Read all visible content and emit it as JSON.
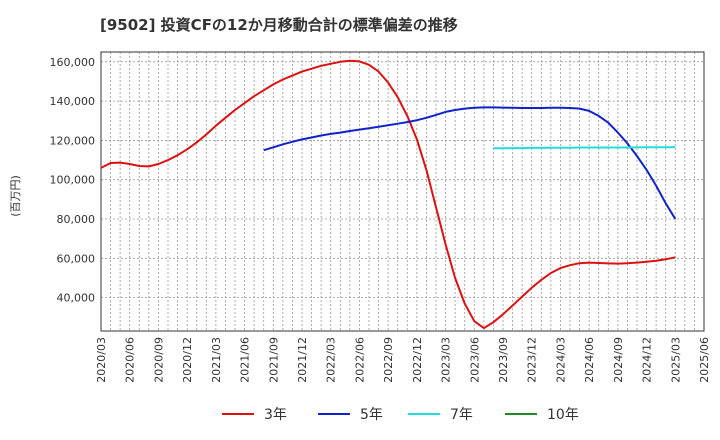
{
  "chart_data": {
    "type": "line",
    "title": "[9502]  投資CFの12か月移動合計の標準偏差の推移",
    "ylabel": "(百万円)",
    "ylim": [
      23000,
      165000
    ],
    "xlim": [
      "2020-03",
      "2025-06"
    ],
    "y_ticks": [
      40000,
      60000,
      80000,
      100000,
      120000,
      140000,
      160000
    ],
    "y_tick_labels": [
      "40,000",
      "60,000",
      "80,000",
      "100,000",
      "120,000",
      "140,000",
      "160,000"
    ],
    "x_tick_labels": [
      "2020/03",
      "2020/06",
      "2020/09",
      "2020/12",
      "2021/03",
      "2021/06",
      "2021/09",
      "2021/12",
      "2022/03",
      "2022/06",
      "2022/09",
      "2022/12",
      "2023/03",
      "2023/06",
      "2023/09",
      "2023/12",
      "2024/03",
      "2024/06",
      "2024/09",
      "2024/12",
      "2025/03",
      "2025/06"
    ],
    "grid": true,
    "legend_position": "bottom",
    "series": [
      {
        "name": "3年",
        "color": "#dd1111",
        "x": [
          "2020-03",
          "2020-04",
          "2020-05",
          "2020-06",
          "2020-07",
          "2020-08",
          "2020-09",
          "2020-10",
          "2020-11",
          "2020-12",
          "2021-01",
          "2021-02",
          "2021-03",
          "2021-04",
          "2021-05",
          "2021-06",
          "2021-07",
          "2021-08",
          "2021-09",
          "2021-10",
          "2021-11",
          "2021-12",
          "2022-01",
          "2022-02",
          "2022-03",
          "2022-04",
          "2022-05",
          "2022-06",
          "2022-07",
          "2022-08",
          "2022-09",
          "2022-10",
          "2022-11",
          "2022-12",
          "2023-01",
          "2023-02",
          "2023-03",
          "2023-04",
          "2023-05",
          "2023-06",
          "2023-07",
          "2023-08",
          "2023-09",
          "2023-10",
          "2023-11",
          "2023-12",
          "2024-01",
          "2024-02",
          "2024-03",
          "2024-04",
          "2024-05",
          "2024-06",
          "2024-07",
          "2024-08",
          "2024-09",
          "2024-10",
          "2024-11",
          "2024-12",
          "2025-01",
          "2025-02",
          "2025-03"
        ],
        "values": [
          106000,
          108500,
          108700,
          108000,
          107000,
          106800,
          108000,
          110000,
          112500,
          115500,
          119000,
          123000,
          127500,
          131500,
          135500,
          139000,
          142500,
          145500,
          148500,
          151000,
          153000,
          155000,
          156500,
          158000,
          159000,
          160000,
          160500,
          160200,
          158500,
          155000,
          149500,
          142000,
          132500,
          120500,
          105000,
          86000,
          67000,
          50000,
          37000,
          28000,
          24500,
          27500,
          31500,
          36000,
          40500,
          45000,
          49000,
          52500,
          55000,
          56500,
          57500,
          57800,
          57600,
          57400,
          57300,
          57500,
          57800,
          58200,
          58800,
          59500,
          60500
        ]
      },
      {
        "name": "5年",
        "color": "#1122cc",
        "x": [
          "2021-08",
          "2021-09",
          "2021-10",
          "2021-11",
          "2021-12",
          "2022-01",
          "2022-02",
          "2022-03",
          "2022-04",
          "2022-05",
          "2022-06",
          "2022-07",
          "2022-08",
          "2022-09",
          "2022-10",
          "2022-11",
          "2022-12",
          "2023-01",
          "2023-02",
          "2023-03",
          "2023-04",
          "2023-05",
          "2023-06",
          "2023-07",
          "2023-08",
          "2023-09",
          "2023-10",
          "2023-11",
          "2023-12",
          "2024-01",
          "2024-02",
          "2024-03",
          "2024-04",
          "2024-05",
          "2024-06",
          "2024-07",
          "2024-08",
          "2024-09",
          "2024-10",
          "2024-11",
          "2024-12",
          "2025-01",
          "2025-02",
          "2025-03"
        ],
        "values": [
          115000,
          116500,
          118000,
          119300,
          120500,
          121500,
          122500,
          123300,
          124000,
          124800,
          125500,
          126200,
          127000,
          127700,
          128500,
          129300,
          130300,
          131500,
          133000,
          134500,
          135500,
          136200,
          136600,
          136800,
          136800,
          136700,
          136600,
          136500,
          136500,
          136500,
          136600,
          136600,
          136500,
          136200,
          135000,
          132500,
          129000,
          124000,
          118500,
          112000,
          105000,
          97000,
          88000,
          80000
        ]
      },
      {
        "name": "7年",
        "color": "#22dddd",
        "x": [
          "2023-08",
          "2023-09",
          "2023-10",
          "2023-11",
          "2023-12",
          "2024-01",
          "2024-02",
          "2024-03",
          "2024-04",
          "2024-05",
          "2024-06",
          "2024-07",
          "2024-08",
          "2024-09",
          "2024-10",
          "2024-11",
          "2024-12",
          "2025-01",
          "2025-02",
          "2025-03"
        ],
        "values": [
          116000,
          116000,
          116100,
          116100,
          116200,
          116200,
          116300,
          116300,
          116300,
          116400,
          116400,
          116400,
          116400,
          116400,
          116400,
          116500,
          116500,
          116500,
          116500,
          116600
        ]
      },
      {
        "name": "10年",
        "color": "#228822",
        "x": [],
        "values": []
      }
    ]
  }
}
